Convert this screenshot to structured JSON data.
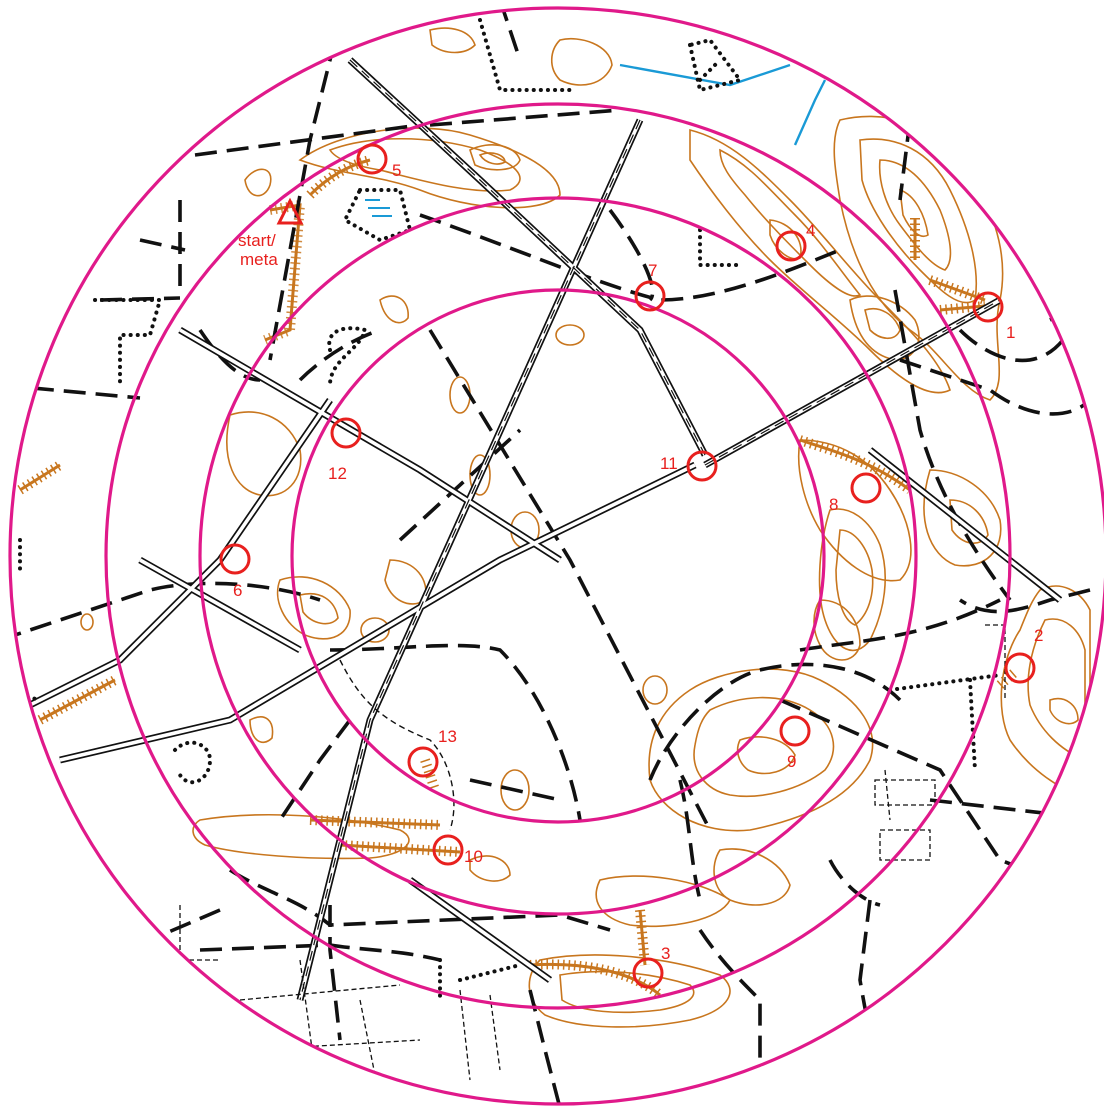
{
  "map": {
    "colors": {
      "ring": "#e0198a",
      "control": "#e8201e",
      "contour": "#c8761e",
      "track": "#111111",
      "water": "#1a9ad6",
      "background": "#ffffff"
    },
    "start": {
      "label_line1": "start/",
      "label_line2": "meta",
      "symbol": "triangle-icon"
    },
    "controls": [
      {
        "number": "1"
      },
      {
        "number": "2"
      },
      {
        "number": "3"
      },
      {
        "number": "4"
      },
      {
        "number": "5"
      },
      {
        "number": "6"
      },
      {
        "number": "7"
      },
      {
        "number": "8"
      },
      {
        "number": "9"
      },
      {
        "number": "10"
      },
      {
        "number": "11"
      },
      {
        "number": "12"
      },
      {
        "number": "13"
      }
    ]
  }
}
